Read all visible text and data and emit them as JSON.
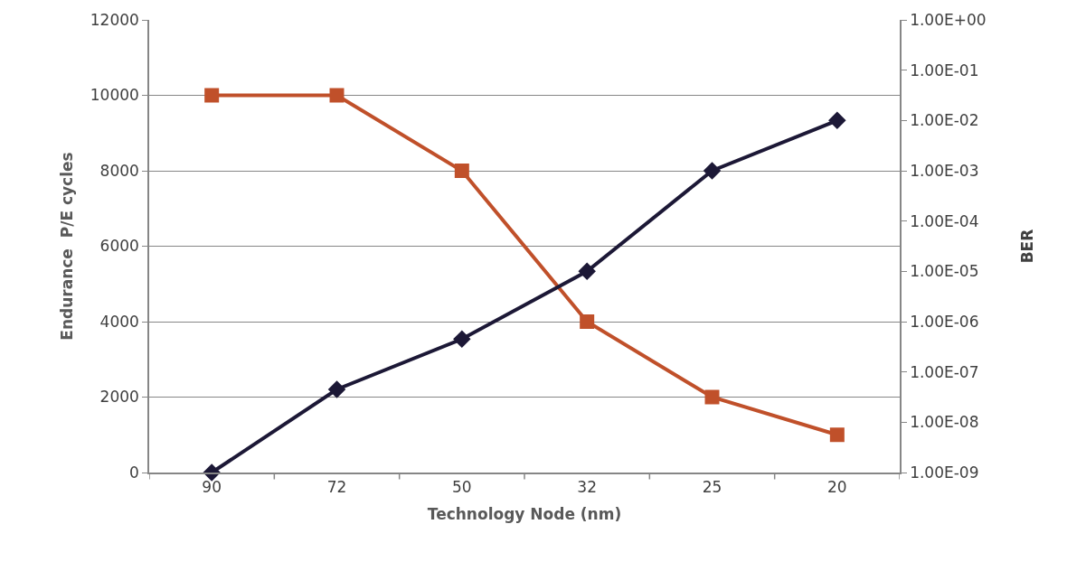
{
  "chart_data": {
    "type": "line",
    "xlabel": "Technology Node (nm)",
    "ylabel": "Endurance  P/E cycles",
    "y2label": "BER",
    "categories": [
      "90",
      "72",
      "50",
      "32",
      "25",
      "20"
    ],
    "series": [
      {
        "color": "#c0502a",
        "marker": "square",
        "values": [
          10000,
          10000,
          8000,
          4000,
          2000,
          1000
        ]
      },
      {
        "color": "#1c1836",
        "marker": "diamond",
        "axis": "y2",
        "values": [
          1e-09,
          4.5e-08,
          4.5e-07,
          1e-05,
          0.001,
          0.01
        ]
      }
    ],
    "ylim": [
      0,
      12000
    ],
    "yticks": [
      0,
      2000,
      4000,
      6000,
      8000,
      10000,
      12000
    ],
    "log": "y2",
    "y2lim": [
      1e-09,
      1
    ],
    "y2ticks": [
      {
        "value": 1,
        "label": "1.00E+00"
      },
      {
        "value": 0.1,
        "label": "1.00E-01"
      },
      {
        "value": 0.01,
        "label": "1.00E-02"
      },
      {
        "value": 0.001,
        "label": "1.00E-03"
      },
      {
        "value": 0.0001,
        "label": "1.00E-04"
      },
      {
        "value": 1e-05,
        "label": "1.00E-05"
      },
      {
        "value": 1e-06,
        "label": "1.00E-06"
      },
      {
        "value": 1e-07,
        "label": "1.00E-07"
      },
      {
        "value": 1e-08,
        "label": "1.00E-08"
      },
      {
        "value": 1e-09,
        "label": "1.00E-09"
      }
    ],
    "grid": "y",
    "legend": false
  }
}
